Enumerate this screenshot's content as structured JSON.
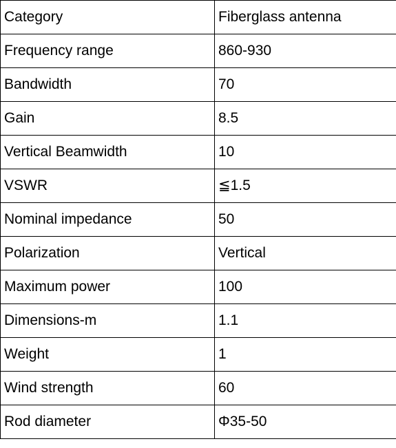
{
  "table": {
    "rows": [
      {
        "label": "Category",
        "value": "Fiberglass antenna"
      },
      {
        "label": "Frequency range",
        "value": "860-930"
      },
      {
        "label": "Bandwidth",
        "value": "70"
      },
      {
        "label": "Gain",
        "value": "8.5"
      },
      {
        "label": "Vertical Beamwidth",
        "value": "10"
      },
      {
        "label": "VSWR",
        "value": "≦1.5"
      },
      {
        "label": "Nominal impedance",
        "value": "50"
      },
      {
        "label": "Polarization",
        "value": "Vertical"
      },
      {
        "label": "Maximum power",
        "value": "100"
      },
      {
        "label": "Dimensions-m",
        "value": "1.1"
      },
      {
        "label": "Weight",
        "value": "1"
      },
      {
        "label": "Wind strength",
        "value": "60"
      },
      {
        "label": "Rod diameter",
        "value": "Φ35-50"
      }
    ]
  }
}
